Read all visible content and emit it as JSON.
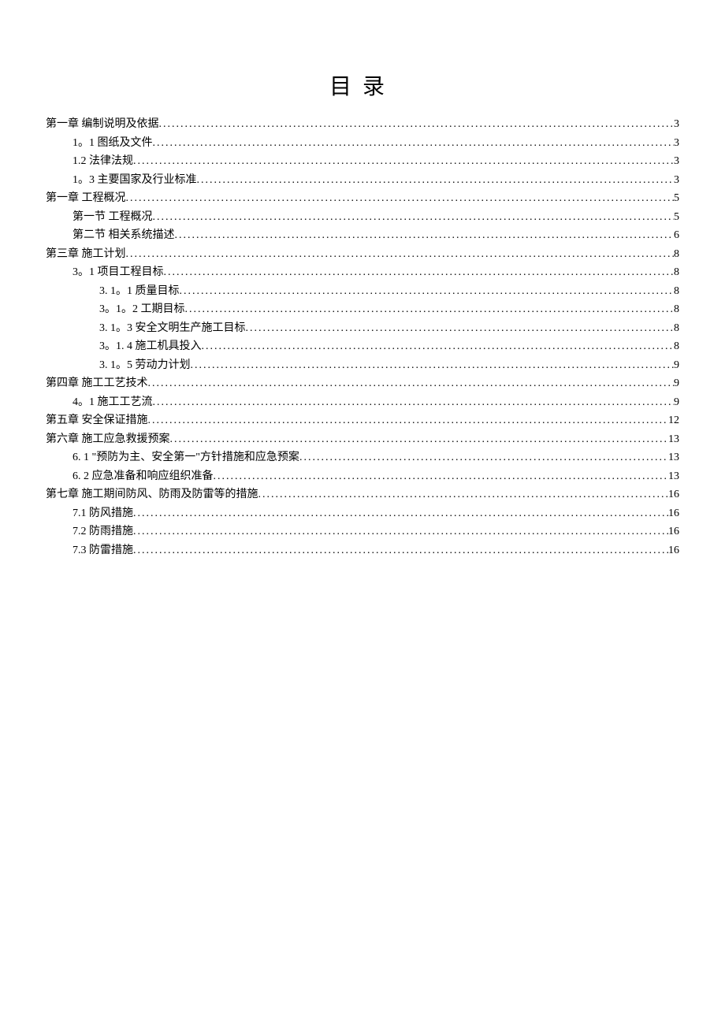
{
  "title": "目录",
  "entries": [
    {
      "indent": 0,
      "text": "第一章   编制说明及依据",
      "page": "3"
    },
    {
      "indent": 1,
      "text": "1。1 图纸及文件",
      "page": "3"
    },
    {
      "indent": 1,
      "text": "1.2 法律法规",
      "page": "3"
    },
    {
      "indent": 1,
      "text": "1。3 主要国家及行业标准",
      "page": "3"
    },
    {
      "indent": 0,
      "text": "第一章  工程概况",
      "page": "5"
    },
    {
      "indent": 1,
      "text": "第一节  工程概况",
      "page": "5"
    },
    {
      "indent": 1,
      "text": "第二节  相关系统描述",
      "page": "6"
    },
    {
      "indent": 0,
      "text": "第三章    施工计划",
      "page": "8"
    },
    {
      "indent": 1,
      "text": "3。1 项目工程目标",
      "page": "8"
    },
    {
      "indent": 2,
      "text": "3. 1。1  质量目标",
      "page": "8"
    },
    {
      "indent": 2,
      "text": "3。1。2  工期目标",
      "page": "8"
    },
    {
      "indent": 2,
      "text": "3. 1。3  安全文明生产施工目标",
      "page": "8"
    },
    {
      "indent": 2,
      "text": "3。1. 4  施工机具投入",
      "page": "8"
    },
    {
      "indent": 2,
      "text": "3. 1。5 劳动力计划",
      "page": "9"
    },
    {
      "indent": 0,
      "text": "第四章  施工工艺技术",
      "page": "9"
    },
    {
      "indent": 1,
      "text": "4。1   施工工艺流",
      "page": "9"
    },
    {
      "indent": 0,
      "text": "第五章  安全保证措施",
      "page": "12"
    },
    {
      "indent": 0,
      "text": "第六章  施工应急救援预案",
      "page": "13"
    },
    {
      "indent": 1,
      "text": "6. 1 \"预防为主、安全第一\"方针措施和应急预案",
      "page": "13"
    },
    {
      "indent": 1,
      "text": "6. 2 应急准备和响应组织准备",
      "page": "13"
    },
    {
      "indent": 0,
      "text": "第七章      施工期间防风、防雨及防雷等的措施",
      "page": "16"
    },
    {
      "indent": 1,
      "text": "7.1    防风措施",
      "page": "16"
    },
    {
      "indent": 1,
      "text": "7.2  防雨措施",
      "page": "16"
    },
    {
      "indent": 1,
      "text": "7.3  防雷措施",
      "page": "16"
    }
  ]
}
